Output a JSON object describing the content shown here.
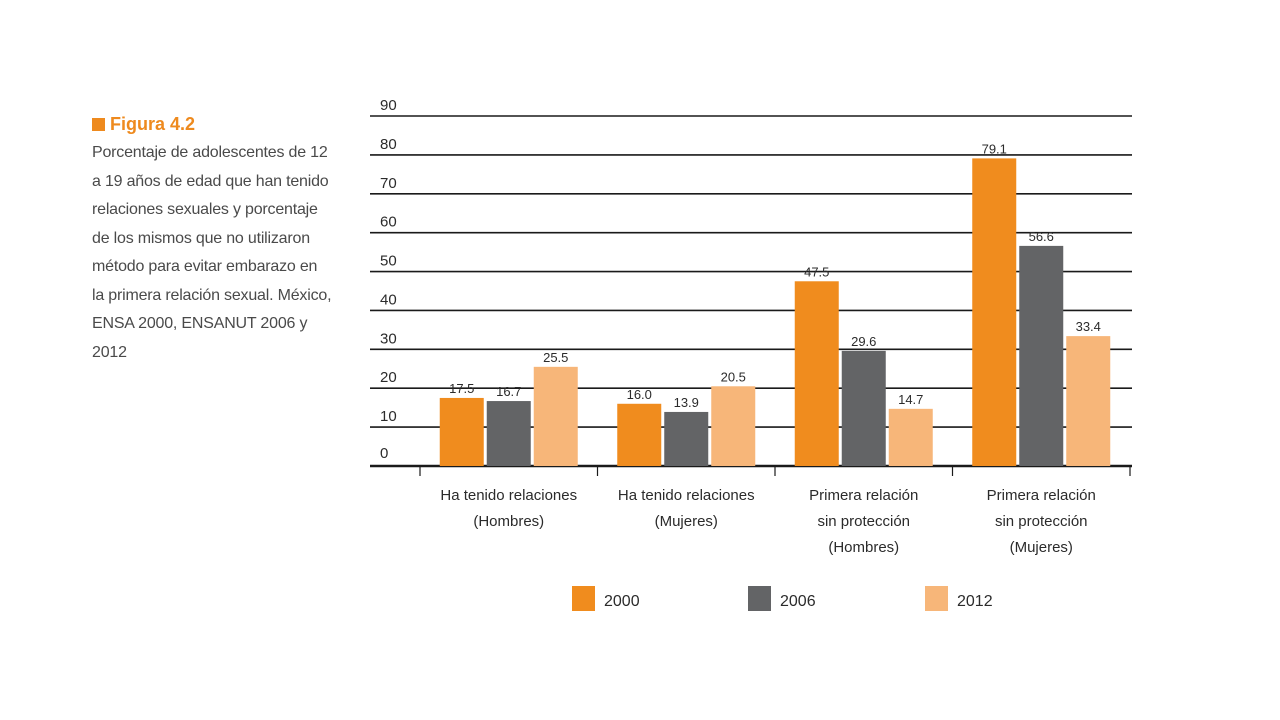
{
  "figure": {
    "title": "Figura 4.2",
    "description_lines": [
      "Porcentaje de adolescentes de 12",
      "a 19 años de edad que han tenido",
      "relaciones sexuales y porcentaje",
      "de los mismos que no utilizaron",
      "método para evitar embarazo en",
      "la primera relación sexual. México,",
      "ENSA 2000, ENSANUT 2006 y 2012"
    ],
    "accent_color": "#ee8a1e"
  },
  "chart_data": {
    "type": "bar",
    "categories": [
      [
        "Ha tenido relaciones",
        "(Hombres)"
      ],
      [
        "Ha tenido relaciones",
        "(Mujeres)"
      ],
      [
        "Primera relación",
        "sin protección",
        "(Hombres)"
      ],
      [
        "Primera relación",
        "sin protección",
        "(Mujeres)"
      ]
    ],
    "series": [
      {
        "name": "2000",
        "color": "#f08c1e",
        "values": [
          17.5,
          16.0,
          47.5,
          79.1
        ],
        "labels": [
          "17.5",
          "16.0",
          "47.5",
          "79.1"
        ]
      },
      {
        "name": "2006",
        "color": "#636466",
        "values": [
          16.7,
          13.9,
          29.6,
          56.6
        ],
        "labels": [
          "16.7",
          "13.9",
          "29.6",
          "56.6"
        ]
      },
      {
        "name": "2012",
        "color": "#f7b679",
        "values": [
          25.5,
          20.5,
          14.7,
          33.4
        ],
        "labels": [
          "25.5",
          "20.5",
          "14.7",
          "33.4"
        ]
      }
    ],
    "yticks": [
      0,
      10,
      20,
      30,
      40,
      50,
      60,
      70,
      80,
      90
    ],
    "ylim": [
      0,
      90
    ],
    "grid": true,
    "legend_position": "bottom"
  }
}
